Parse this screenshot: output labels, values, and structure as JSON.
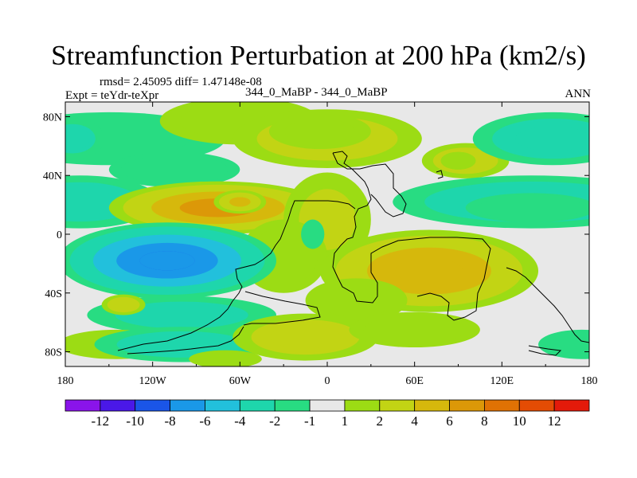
{
  "chart_data": {
    "type": "heatmap",
    "title": "Streamfunction Perturbation at 200 hPa (km2/s)",
    "subtitle_stats": "rmsd= 2.45095 diff= 1.47148e-08",
    "left_label": "Expt = teYdr-teXpr",
    "center_label": "344_0_MaBP - 344_0_MaBP",
    "right_label": "ANN",
    "x_range": [
      -180,
      180
    ],
    "y_range": [
      -90,
      90
    ],
    "x_ticks": [
      {
        "value": -180,
        "label": "180"
      },
      {
        "value": -120,
        "label": "120W"
      },
      {
        "value": -60,
        "label": "60W"
      },
      {
        "value": 0,
        "label": "0"
      },
      {
        "value": 60,
        "label": "60E"
      },
      {
        "value": 120,
        "label": "120E"
      },
      {
        "value": 180,
        "label": "180"
      }
    ],
    "y_ticks": [
      {
        "value": 80,
        "label": "80N"
      },
      {
        "value": 40,
        "label": "40N"
      },
      {
        "value": 0,
        "label": "0"
      },
      {
        "value": -40,
        "label": "40S"
      },
      {
        "value": -80,
        "label": "80S"
      }
    ],
    "colorbar": {
      "colors": [
        "#8a14ea",
        "#4a18e8",
        "#1a55e8",
        "#1a98e8",
        "#22c0dc",
        "#1ed6ac",
        "#28dc82",
        "#e8e8e8",
        "#9cdc14",
        "#c2d414",
        "#d6b80c",
        "#dc9808",
        "#e07204",
        "#e44c04",
        "#e41a0a"
      ],
      "labels": [
        "-12",
        "-10",
        "-8",
        "-6",
        "-4",
        "-2",
        "-1",
        "1",
        "2",
        "4",
        "6",
        "8",
        "10",
        "12"
      ]
    },
    "contour_anomalies": [
      {
        "lon": -150,
        "lat": 65,
        "rx": 80,
        "ry": 18,
        "value": -1.8
      },
      {
        "lon": -175,
        "lat": 65,
        "rx": 22,
        "ry": 14,
        "value": -2.6
      },
      {
        "lon": -105,
        "lat": 44,
        "rx": 45,
        "ry": 12,
        "value": -1.4
      },
      {
        "lon": -170,
        "lat": 22,
        "rx": 55,
        "ry": 18,
        "value": -3.0
      },
      {
        "lon": -60,
        "lat": 77,
        "rx": 55,
        "ry": 16,
        "value": 1.6
      },
      {
        "lon": 0,
        "lat": 65,
        "rx": 65,
        "ry": 20,
        "value": 3.0
      },
      {
        "lon": -5,
        "lat": 70,
        "rx": 35,
        "ry": 12,
        "value": 1.8
      },
      {
        "lon": 95,
        "lat": 50,
        "rx": 30,
        "ry": 12,
        "value": 3.0
      },
      {
        "lon": 90,
        "lat": 50,
        "rx": 12,
        "ry": 6,
        "value": 1.0
      },
      {
        "lon": 155,
        "lat": 65,
        "rx": 55,
        "ry": 18,
        "value": -3.2
      },
      {
        "lon": 140,
        "lat": 22,
        "rx": 95,
        "ry": 18,
        "value": -3.4
      },
      {
        "lon": 140,
        "lat": 18,
        "rx": 45,
        "ry": 10,
        "value": -1.4
      },
      {
        "lon": -75,
        "lat": 18,
        "rx": 75,
        "ry": 18,
        "value": 6.5
      },
      {
        "lon": -60,
        "lat": 22,
        "rx": 18,
        "ry": 8,
        "value": 4.0
      },
      {
        "lon": 0,
        "lat": 10,
        "rx": 30,
        "ry": 32,
        "value": 2.0
      },
      {
        "lon": -30,
        "lat": -15,
        "rx": 30,
        "ry": 25,
        "value": 1.5
      },
      {
        "lon": -10,
        "lat": 0,
        "rx": 8,
        "ry": 10,
        "value": -1.2
      },
      {
        "lon": -110,
        "lat": -18,
        "rx": 75,
        "ry": 26,
        "value": -8.0
      },
      {
        "lon": -100,
        "lat": -55,
        "rx": 65,
        "ry": 13,
        "value": -2.5
      },
      {
        "lon": -140,
        "lat": -48,
        "rx": 15,
        "ry": 7,
        "value": 3.0
      },
      {
        "lon": -145,
        "lat": -75,
        "rx": 40,
        "ry": 10,
        "value": 1.5
      },
      {
        "lon": -100,
        "lat": -75,
        "rx": 60,
        "ry": 12,
        "value": -3.0
      },
      {
        "lon": -70,
        "lat": -85,
        "rx": 25,
        "ry": 6,
        "value": 1.0
      },
      {
        "lon": 70,
        "lat": -25,
        "rx": 75,
        "ry": 28,
        "value": 5.8
      },
      {
        "lon": 20,
        "lat": -45,
        "rx": 35,
        "ry": 15,
        "value": 1.6
      },
      {
        "lon": -15,
        "lat": -70,
        "rx": 50,
        "ry": 16,
        "value": 3.0
      },
      {
        "lon": 60,
        "lat": -65,
        "rx": 45,
        "ry": 12,
        "value": 1.5
      },
      {
        "lon": 175,
        "lat": -75,
        "rx": 30,
        "ry": 10,
        "value": -1.5
      }
    ]
  }
}
